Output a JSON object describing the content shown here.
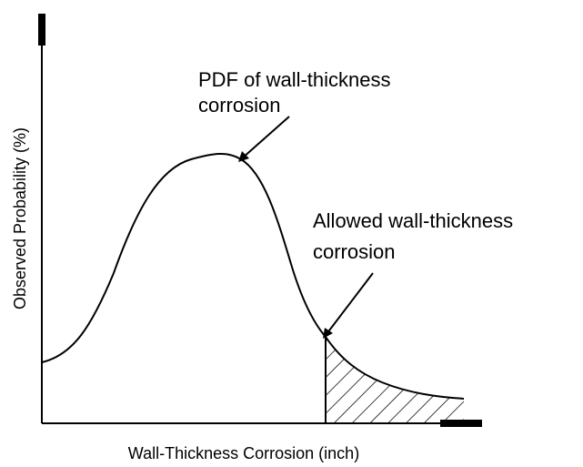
{
  "annotations": [
    {
      "lines": [
        "PDF of wall-thickness",
        "corrosion"
      ]
    },
    {
      "lines": [
        "Allowed wall-thickness",
        "corrosion"
      ]
    }
  ],
  "y_axis_label": "Observed Probability (%)",
  "x_axis_label": "Wall-Thickness Corrosion (inch)"
}
